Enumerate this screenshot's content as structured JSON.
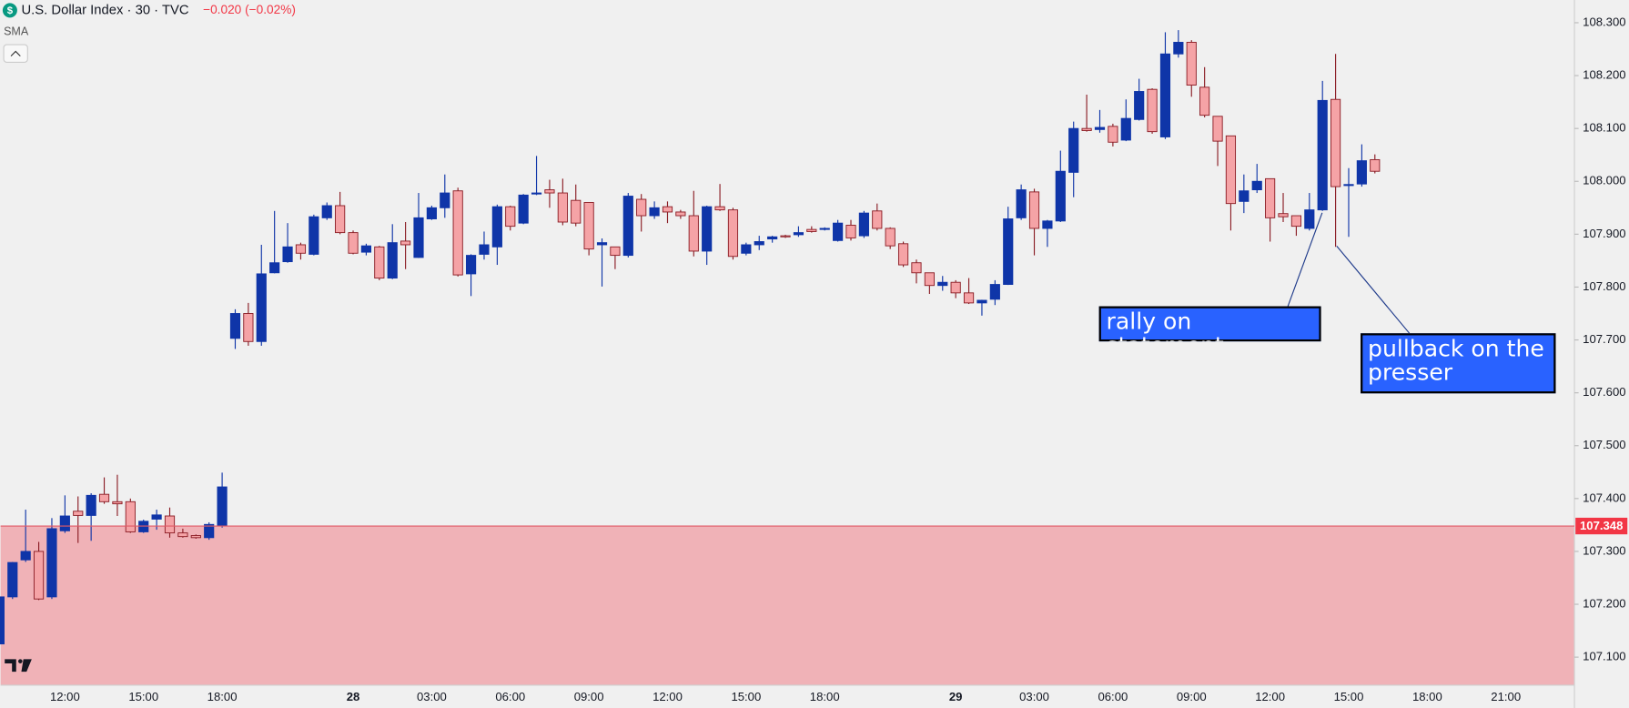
{
  "chart_data": {
    "type": "candlestick",
    "title": "U.S. Dollar Index · 30 · TVC",
    "change": "−0.020 (−0.02%)",
    "indicator": "SMA",
    "categories": [
      null,
      null,
      null,
      null,
      null,
      "12:00",
      null,
      null,
      null,
      null,
      null,
      "15:00",
      null,
      null,
      null,
      null,
      null,
      "18:00",
      null,
      null,
      null,
      null,
      null,
      null,
      null,
      null,
      null,
      "28",
      null,
      null,
      null,
      null,
      null,
      "03:00",
      null,
      null,
      null,
      null,
      null,
      "06:00",
      null,
      null,
      null,
      null,
      null,
      "09:00",
      null,
      null,
      null,
      null,
      null,
      "12:00",
      null,
      null,
      null,
      null,
      null,
      "15:00",
      null,
      null,
      null,
      null,
      null,
      "18:00",
      null,
      null,
      null,
      null,
      null,
      null,
      null,
      null,
      null,
      "29",
      null,
      null,
      null,
      null,
      null,
      "03:00",
      null,
      null,
      null,
      null,
      null,
      "06:00",
      null,
      null,
      null,
      null,
      null,
      "09:00",
      null,
      null,
      null,
      null,
      null,
      "12:00",
      null,
      null,
      null,
      null,
      null,
      "15:00",
      null,
      null,
      null,
      null,
      null,
      "18:00",
      null,
      null,
      null,
      null,
      null,
      "21:00"
    ],
    "open": [
      107.125,
      107.214,
      107.284,
      107.3,
      107.214,
      107.339,
      107.376,
      107.368,
      107.408,
      107.394,
      107.394,
      107.337,
      107.361,
      107.367,
      107.335,
      107.33,
      107.326,
      107.349,
      107.703,
      107.75,
      107.697,
      107.827,
      107.848,
      107.88,
      107.862,
      107.931,
      107.954,
      107.903,
      107.866,
      107.876,
      107.817,
      107.887,
      107.856,
      107.929,
      107.95,
      107.982,
      107.825,
      107.862,
      107.876,
      107.952,
      107.921,
      107.976,
      107.984,
      107.978,
      107.964,
      107.96,
      107.88,
      107.876,
      107.86,
      107.966,
      107.935,
      107.952,
      107.942,
      107.935,
      107.868,
      107.952,
      107.946,
      107.864,
      107.88,
      107.891,
      107.897,
      107.899,
      107.909,
      107.909,
      107.888,
      107.917,
      107.897,
      107.944,
      107.911,
      107.882,
      107.846,
      107.827,
      107.803,
      107.809,
      107.789,
      107.77,
      107.777,
      107.805,
      107.931,
      107.98,
      107.911,
      107.925,
      108.017,
      108.1,
      108.098,
      108.104,
      108.078,
      108.117,
      108.174,
      108.084,
      108.241,
      108.263,
      108.178,
      108.123,
      108.086,
      107.962,
      107.984,
      108.005,
      107.939,
      107.935,
      107.911,
      107.946,
      108.155,
      107.992,
      107.995,
      108.041,
      null,
      null,
      null,
      null,
      null,
      null,
      null,
      null,
      null,
      null
    ],
    "high": [
      107.22,
      107.28,
      107.379,
      107.318,
      107.363,
      107.406,
      107.404,
      107.41,
      107.44,
      107.445,
      107.4,
      107.36,
      107.379,
      107.383,
      107.343,
      107.332,
      107.355,
      107.449,
      107.758,
      107.77,
      107.88,
      107.944,
      107.921,
      107.884,
      107.937,
      107.96,
      107.98,
      107.907,
      107.882,
      107.878,
      107.919,
      107.923,
      107.978,
      107.954,
      108.013,
      107.988,
      107.862,
      107.905,
      107.956,
      107.954,
      107.976,
      108.048,
      108.003,
      108.005,
      107.994,
      107.96,
      107.892,
      107.876,
      107.978,
      107.976,
      107.962,
      107.962,
      107.946,
      107.982,
      107.954,
      107.995,
      107.95,
      107.884,
      107.897,
      107.897,
      107.899,
      107.915,
      107.915,
      107.913,
      107.927,
      107.927,
      107.944,
      107.958,
      107.913,
      107.886,
      107.852,
      107.827,
      107.821,
      107.813,
      107.817,
      107.776,
      107.813,
      107.952,
      107.994,
      107.986,
      107.927,
      108.058,
      108.113,
      108.164,
      108.135,
      108.109,
      108.155,
      108.194,
      108.176,
      108.282,
      108.286,
      108.267,
      108.216,
      108.123,
      108.086,
      108.013,
      108.033,
      108.005,
      107.978,
      107.935,
      107.978,
      108.19,
      108.241,
      108.025,
      108.07,
      108.051,
      null,
      null,
      null,
      null,
      null,
      null,
      null,
      null,
      null,
      null
    ],
    "low": [
      107.12,
      107.21,
      107.28,
      107.208,
      107.21,
      107.335,
      107.316,
      107.32,
      107.39,
      107.367,
      107.335,
      107.335,
      107.341,
      107.326,
      107.326,
      107.324,
      107.322,
      107.345,
      107.683,
      107.689,
      107.689,
      107.826,
      107.846,
      107.852,
      107.86,
      107.927,
      107.9,
      107.862,
      107.86,
      107.813,
      107.815,
      107.834,
      107.855,
      107.927,
      107.931,
      107.82,
      107.783,
      107.852,
      107.842,
      107.907,
      107.919,
      107.974,
      107.95,
      107.917,
      107.915,
      107.86,
      107.801,
      107.834,
      107.856,
      107.905,
      107.929,
      107.921,
      107.929,
      107.858,
      107.842,
      107.944,
      107.852,
      107.86,
      107.87,
      107.884,
      107.893,
      107.895,
      107.903,
      107.907,
      107.886,
      107.888,
      107.893,
      107.907,
      107.872,
      107.838,
      107.807,
      107.787,
      107.793,
      107.779,
      107.768,
      107.746,
      107.766,
      107.804,
      107.927,
      107.86,
      107.876,
      107.923,
      107.97,
      108.094,
      108.092,
      108.066,
      108.076,
      108.115,
      108.09,
      108.08,
      108.234,
      108.16,
      108.121,
      108.029,
      107.907,
      107.94,
      107.978,
      107.886,
      107.923,
      107.897,
      107.907,
      107.944,
      107.876,
      107.895,
      107.99,
      108.015,
      null,
      null,
      null,
      null,
      null,
      null,
      null,
      null,
      null,
      null
    ],
    "close": [
      107.214,
      107.279,
      107.3,
      107.21,
      107.343,
      107.367,
      107.368,
      107.406,
      107.394,
      107.39,
      107.337,
      107.357,
      107.369,
      107.335,
      107.328,
      107.326,
      107.351,
      107.422,
      107.75,
      107.697,
      107.825,
      107.846,
      107.876,
      107.864,
      107.933,
      107.954,
      107.903,
      107.864,
      107.878,
      107.817,
      107.884,
      107.88,
      107.931,
      107.95,
      107.978,
      107.823,
      107.86,
      107.88,
      107.952,
      107.915,
      107.974,
      107.978,
      107.978,
      107.923,
      107.921,
      107.872,
      107.884,
      107.86,
      107.972,
      107.935,
      107.95,
      107.942,
      107.935,
      107.868,
      107.952,
      107.946,
      107.858,
      107.88,
      107.886,
      107.895,
      107.895,
      107.903,
      107.905,
      107.911,
      107.921,
      107.893,
      107.94,
      107.911,
      107.878,
      107.842,
      107.827,
      107.803,
      107.809,
      107.789,
      107.77,
      107.775,
      107.805,
      107.929,
      107.984,
      107.911,
      107.925,
      108.019,
      108.1,
      108.096,
      108.102,
      108.074,
      108.119,
      108.17,
      108.094,
      108.241,
      108.263,
      108.182,
      108.125,
      108.076,
      107.958,
      107.982,
      108.0,
      107.931,
      107.933,
      107.915,
      107.946,
      108.153,
      107.99,
      107.994,
      108.039,
      108.019,
      null,
      null,
      null,
      null,
      null,
      null,
      null,
      null,
      null,
      null
    ],
    "up_color": "#0f35a8",
    "down_color": "#f5a3a6",
    "ylim": [
      107.047,
      108.343
    ],
    "yticks": [
      {
        "value": 107.1,
        "label": "107.100"
      },
      {
        "value": 107.2,
        "label": "107.200"
      },
      {
        "value": 107.3,
        "label": "107.300"
      },
      {
        "value": 107.4,
        "label": "107.400"
      },
      {
        "value": 107.5,
        "label": "107.500"
      },
      {
        "value": 107.6,
        "label": "107.600"
      },
      {
        "value": 107.7,
        "label": "107.700"
      },
      {
        "value": 107.8,
        "label": "107.800"
      },
      {
        "value": 107.9,
        "label": "107.900"
      },
      {
        "value": 108.0,
        "label": "108.000"
      },
      {
        "value": 108.1,
        "label": "108.100"
      },
      {
        "value": 108.2,
        "label": "108.200"
      },
      {
        "value": 108.3,
        "label": "108.300"
      }
    ],
    "price_line": 107.348,
    "annotations": [
      "rally on statement",
      "pullback on the presser"
    ]
  }
}
